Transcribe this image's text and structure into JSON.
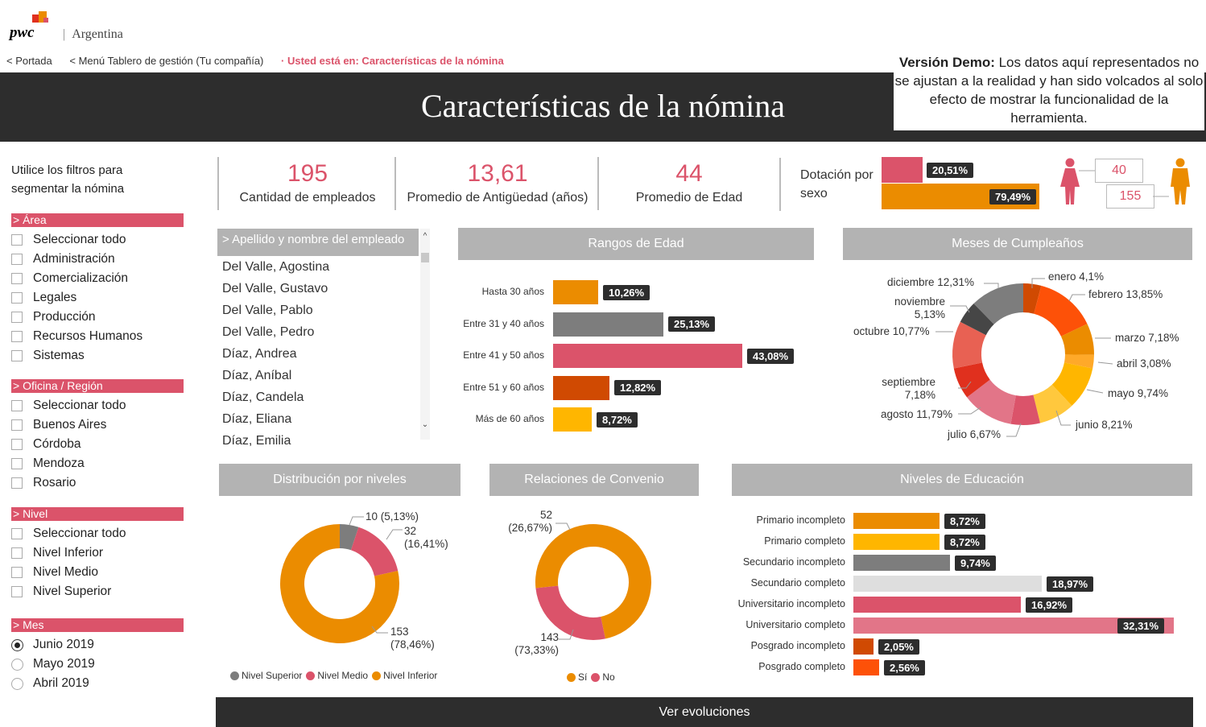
{
  "brand": {
    "logo_text": "pwc",
    "country": "Argentina"
  },
  "breadcrumbs": {
    "home": "< Portada",
    "menu": "< Menú Tablero de gestión (Tu compañía)",
    "here": "· Usted está en: Características de la nómina"
  },
  "title": "Características de la nómina",
  "demo": {
    "bold": "Versión Demo:",
    "text": " Los datos aquí representados no se ajustan a la realidad y han sido volcados al solo efecto de mostrar la funcionalidad de la herramienta."
  },
  "filters": {
    "intro": "Utilice los filtros para segmentar la nómina",
    "area": {
      "title": "> Área",
      "items": [
        "Seleccionar todo",
        "Administración",
        "Comercialización",
        "Legales",
        "Producción",
        "Recursos Humanos",
        "Sistemas"
      ]
    },
    "office": {
      "title": "> Oficina / Región",
      "items": [
        "Seleccionar todo",
        "Buenos Aires",
        "Córdoba",
        "Mendoza",
        "Rosario"
      ]
    },
    "level": {
      "title": "> Nivel",
      "items": [
        "Seleccionar todo",
        "Nivel Inferior",
        "Nivel Medio",
        "Nivel Superior"
      ]
    },
    "month": {
      "title": "> Mes",
      "items": [
        "Junio 2019",
        "Mayo 2019",
        "Abril 2019"
      ],
      "selected": "Junio 2019"
    }
  },
  "kpis": {
    "employees": {
      "value": "195",
      "label": "Cantidad de empleados"
    },
    "seniority": {
      "value": "13,61",
      "label": "Promedio de Antigüedad (años)"
    },
    "age": {
      "value": "44",
      "label": "Promedio de Edad"
    }
  },
  "sex": {
    "label": "Dotación por sexo",
    "female": {
      "pct": "20,51%",
      "value": 20.51,
      "count": "40",
      "color": "#db536a"
    },
    "male": {
      "pct": "79,49%",
      "value": 79.49,
      "count": "155",
      "color": "#eb8c00"
    }
  },
  "employees": {
    "header": "> Apellido y nombre del empleado",
    "items": [
      "Del Valle, Agostina",
      "Del Valle, Gustavo",
      "Del Valle, Pablo",
      "Del Valle, Pedro",
      "Díaz, Andrea",
      "Díaz, Aníbal",
      "Díaz, Candela",
      "Díaz, Eliana",
      "Díaz, Emilia"
    ]
  },
  "panels": {
    "age": "Rangos de Edad",
    "birthdays": "Meses de Cumpleaños",
    "levels": "Distribución por niveles",
    "agreement": "Relaciones de Convenio",
    "education": "Niveles de Educación"
  },
  "chart_data": [
    {
      "type": "bar",
      "id": "age",
      "categories": [
        "Hasta 30 años",
        "Entre 31 y 40 años",
        "Entre 41 y 50 años",
        "Entre 51 y 60 años",
        "Más de 60 años"
      ],
      "values": [
        10.26,
        25.13,
        43.08,
        12.82,
        8.72
      ],
      "labels": [
        "10,26%",
        "25,13%",
        "43,08%",
        "12,82%",
        "8,72%"
      ],
      "colors": [
        "#eb8c00",
        "#7d7d7d",
        "#db536a",
        "#d04a02",
        "#ffb600"
      ]
    },
    {
      "type": "pie",
      "id": "birthdays",
      "categories": [
        "enero",
        "febrero",
        "marzo",
        "abril",
        "mayo",
        "junio",
        "julio",
        "agosto",
        "septiembre",
        "octubre",
        "noviembre",
        "diciembre"
      ],
      "values": [
        4.1,
        13.85,
        7.18,
        3.08,
        9.74,
        8.21,
        6.67,
        11.79,
        7.18,
        10.77,
        5.13,
        12.31
      ],
      "labels": [
        "enero 4,1%",
        "febrero 13,85%",
        "marzo 7,18%",
        "abril 3,08%",
        "mayo 9,74%",
        "junio 8,21%",
        "julio 6,67%",
        "agosto 11,79%",
        "septiembre 7,18%",
        "octubre 10,77%",
        "noviembre 5,13%",
        "diciembre 12,31%"
      ],
      "colors": [
        "#d04a02",
        "#fd5108",
        "#eb8c00",
        "#ffa929",
        "#ffb600",
        "#ffc83d",
        "#db536a",
        "#e27588",
        "#e0301e",
        "#e86153",
        "#464646",
        "#7d7d7d"
      ]
    },
    {
      "type": "pie",
      "id": "levels",
      "categories": [
        "Nivel Superior",
        "Nivel Medio",
        "Nivel Inferior"
      ],
      "values": [
        10,
        32,
        153
      ],
      "labels": [
        "10 (5,13%)",
        "32 (16,41%)",
        "153 (78,46%)"
      ],
      "colors": [
        "#7d7d7d",
        "#db536a",
        "#eb8c00"
      ]
    },
    {
      "type": "pie",
      "id": "agreement",
      "categories": [
        "Sí",
        "No"
      ],
      "values": [
        143,
        52
      ],
      "labels": [
        "143 (73,33%)",
        "52 (26,67%)"
      ],
      "colors": [
        "#eb8c00",
        "#db536a"
      ]
    },
    {
      "type": "bar",
      "id": "education",
      "categories": [
        "Primario incompleto",
        "Primario completo",
        "Secundario incompleto",
        "Secundario completo",
        "Universitario incompleto",
        "Universitario completo",
        "Posgrado incompleto",
        "Posgrado completo"
      ],
      "values": [
        8.72,
        8.72,
        9.74,
        18.97,
        16.92,
        32.31,
        2.05,
        2.56
      ],
      "labels": [
        "8,72%",
        "8,72%",
        "9,74%",
        "18,97%",
        "16,92%",
        "32,31%",
        "2,05%",
        "2,56%"
      ],
      "colors": [
        "#eb8c00",
        "#ffb600",
        "#7d7d7d",
        "#dedede",
        "#db536a",
        "#e27588",
        "#d04a02",
        "#fd5108"
      ]
    }
  ],
  "callouts": {
    "levels": {
      "top_a": "10 (5,13%)",
      "top_b1": "32",
      "top_b2": "(16,41%)",
      "bottom1": "153",
      "bottom2": "(78,46%)"
    },
    "agreement": {
      "top1": "52",
      "top2": "(26,67%)",
      "bottom1": "143",
      "bottom2": "(73,33%)"
    },
    "birthdays": {
      "enero": "enero 4,1%",
      "febrero": "febrero 13,85%",
      "marzo": "marzo 7,18%",
      "abril": "abril 3,08%",
      "mayo": "mayo 9,74%",
      "junio": "junio 8,21%",
      "julio": "julio 6,67%",
      "agosto": "agosto 11,79%",
      "septiembre1": "septiembre",
      "septiembre2": "7,18%",
      "octubre": "octubre 10,77%",
      "noviembre1": "noviembre",
      "noviembre2": "5,13%",
      "diciembre": "diciembre 12,31%"
    }
  },
  "legends": {
    "levels": [
      "Nivel Superior",
      "Nivel Medio",
      "Nivel Inferior"
    ],
    "agreement": [
      "Sí",
      "No"
    ]
  },
  "footer": "Ver evoluciones"
}
